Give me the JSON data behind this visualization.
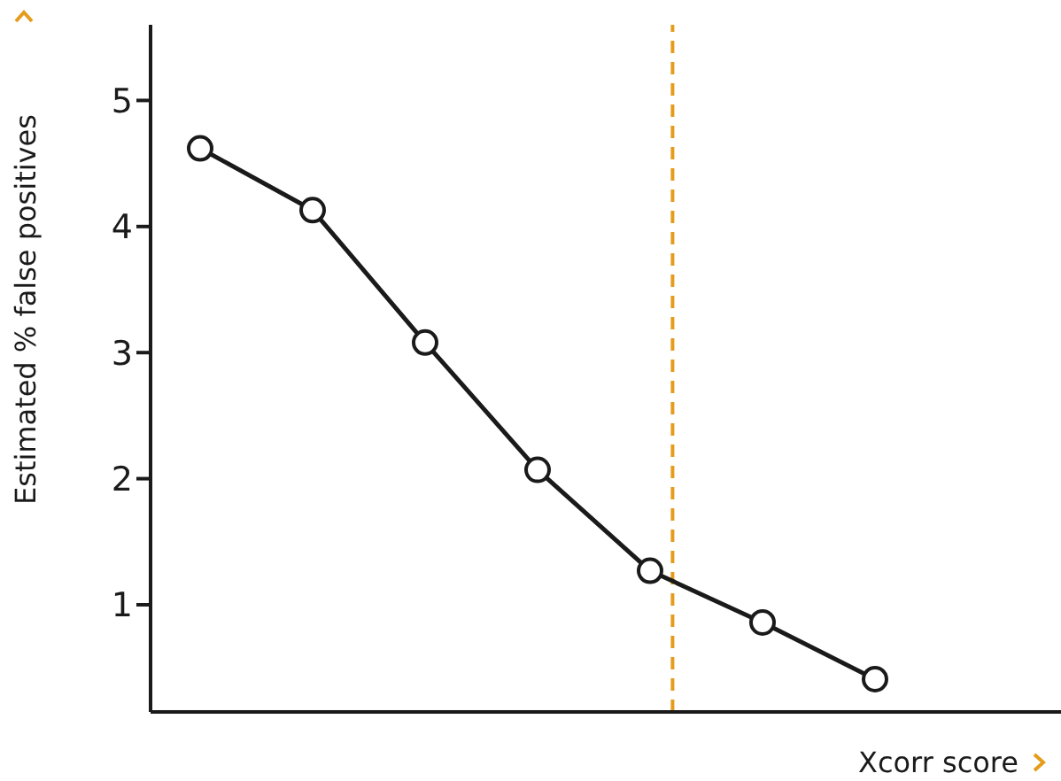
{
  "chart_data": {
    "type": "line",
    "xlabel": "Xcorr score",
    "ylabel": "Estimated % false positives",
    "categories": [
      null,
      null,
      null,
      null,
      null,
      null,
      null
    ],
    "series": [
      {
        "color": "#1a1a1a",
        "values": [
          4.62,
          4.13,
          3.08,
          2.07,
          1.27,
          0.86,
          0.41
        ]
      }
    ],
    "ylim": [
      0.15,
      5.6
    ],
    "yticks": [
      1,
      2,
      3,
      4,
      5
    ],
    "marker": "circle",
    "line_style": "solid",
    "grid": false,
    "legend": false
  }
}
